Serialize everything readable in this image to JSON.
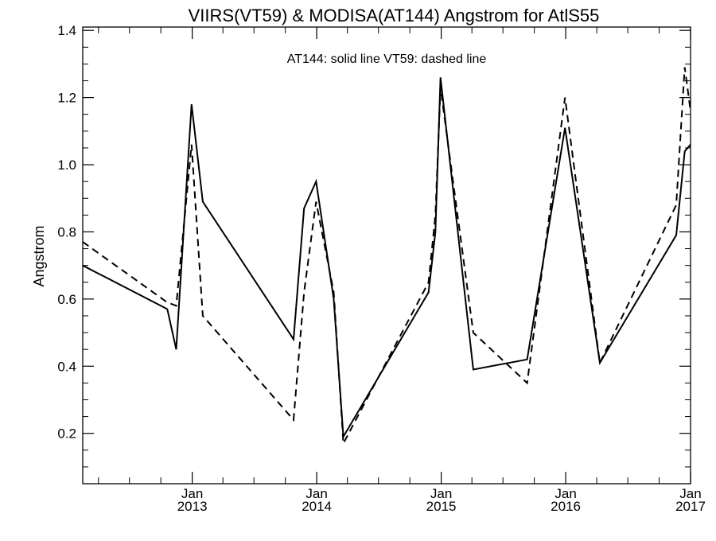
{
  "chart_data": {
    "type": "line",
    "title": "VIIRS(VT59) & MODISA(AT144)  Angstrom for AtlS55",
    "annotation": "AT144: solid line   VT59: dashed line",
    "xlabel": "",
    "ylabel": "Angstrom",
    "xlim": [
      "2012-02-15",
      "2017-01-01"
    ],
    "ylim": [
      0.05,
      1.41
    ],
    "yticks": [
      0.2,
      0.4,
      0.6,
      0.8,
      1.0,
      1.2,
      1.4
    ],
    "ytick_labels": [
      "0.2",
      "0.4",
      "0.6",
      "0.8",
      "1.0",
      "1.2",
      "1.4"
    ],
    "xticks": [
      {
        "date": "2013-01-01",
        "month": "Jan",
        "year": "2013"
      },
      {
        "date": "2014-01-01",
        "month": "Jan",
        "year": "2014"
      },
      {
        "date": "2015-01-01",
        "month": "Jan",
        "year": "2015"
      },
      {
        "date": "2016-01-01",
        "month": "Jan",
        "year": "2016"
      },
      {
        "date": "2017-01-01",
        "month": "Jan",
        "year": "2017"
      }
    ],
    "series": [
      {
        "name": "AT144",
        "style": "solid",
        "color": "#000000",
        "points": [
          [
            "2012-02-15",
            0.7
          ],
          [
            "2012-10-20",
            0.57
          ],
          [
            "2012-11-15",
            0.45
          ],
          [
            "2012-12-30",
            1.18
          ],
          [
            "2013-02-01",
            0.89
          ],
          [
            "2013-10-25",
            0.48
          ],
          [
            "2013-11-25",
            0.87
          ],
          [
            "2013-12-30",
            0.95
          ],
          [
            "2014-02-20",
            0.6
          ],
          [
            "2014-03-20",
            0.19
          ],
          [
            "2014-11-25",
            0.62
          ],
          [
            "2014-12-15",
            0.8
          ],
          [
            "2014-12-30",
            1.26
          ],
          [
            "2015-04-05",
            0.39
          ],
          [
            "2015-09-10",
            0.42
          ],
          [
            "2015-12-30",
            1.11
          ],
          [
            "2016-04-10",
            0.41
          ],
          [
            "2016-11-20",
            0.79
          ],
          [
            "2016-12-15",
            1.04
          ],
          [
            "2017-01-01",
            1.06
          ]
        ]
      },
      {
        "name": "VT59",
        "style": "dashed",
        "color": "#000000",
        "points": [
          [
            "2012-02-15",
            0.77
          ],
          [
            "2012-10-20",
            0.59
          ],
          [
            "2012-11-15",
            0.58
          ],
          [
            "2012-12-30",
            1.06
          ],
          [
            "2013-02-01",
            0.55
          ],
          [
            "2013-10-25",
            0.24
          ],
          [
            "2013-11-25",
            0.62
          ],
          [
            "2013-12-30",
            0.89
          ],
          [
            "2014-02-20",
            0.62
          ],
          [
            "2014-03-20",
            0.17
          ],
          [
            "2014-11-25",
            0.65
          ],
          [
            "2014-12-15",
            0.85
          ],
          [
            "2014-12-30",
            1.23
          ],
          [
            "2015-04-05",
            0.5
          ],
          [
            "2015-09-10",
            0.35
          ],
          [
            "2015-12-30",
            1.2
          ],
          [
            "2016-04-10",
            0.41
          ],
          [
            "2016-11-20",
            0.88
          ],
          [
            "2016-12-15",
            1.29
          ],
          [
            "2017-01-01",
            1.16
          ]
        ]
      }
    ],
    "grid": false,
    "legend": "none"
  }
}
